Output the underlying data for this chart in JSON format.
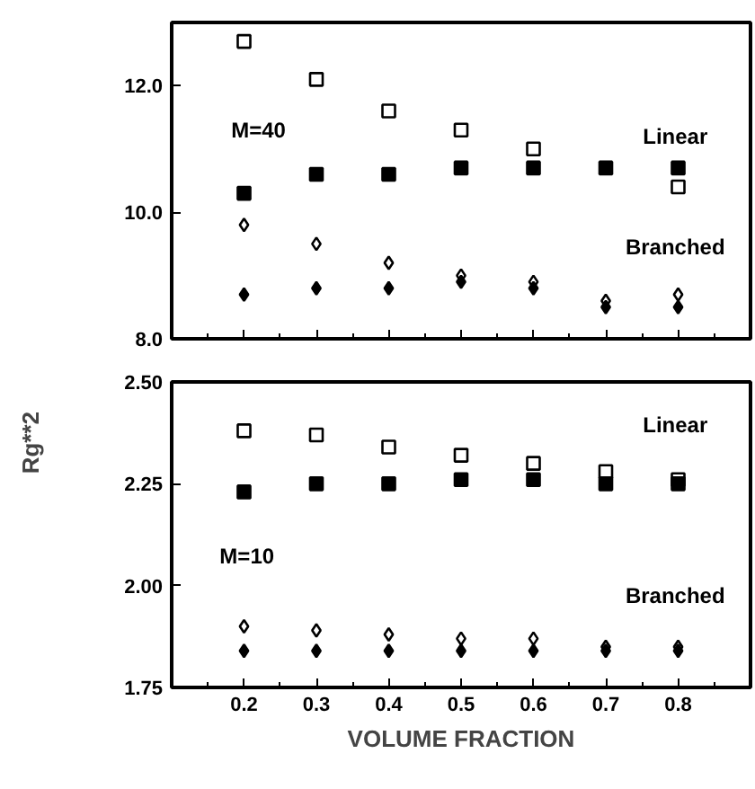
{
  "chart_data": [
    {
      "type": "scatter",
      "ylabel": "Rg**2",
      "x": [
        0.2,
        0.3,
        0.4,
        0.5,
        0.6,
        0.7,
        0.8
      ],
      "series": [
        {
          "color": "#000000",
          "marker": "square",
          "values": [
            12.7,
            12.1,
            11.6,
            11.3,
            11.0,
            null,
            10.4
          ]
        },
        {
          "color": "#000000",
          "marker": "square",
          "values": [
            10.3,
            10.6,
            10.6,
            10.7,
            10.7,
            10.7,
            10.7
          ]
        },
        {
          "color": "#000000",
          "marker": "diamond",
          "values": [
            9.8,
            9.5,
            9.2,
            9.0,
            8.9,
            8.6,
            8.7
          ]
        },
        {
          "color": "#000000",
          "marker": "diamond",
          "values": [
            8.7,
            8.8,
            8.8,
            8.9,
            8.8,
            8.5,
            8.5
          ]
        }
      ],
      "annotations": [
        "M=40",
        "Linear",
        "Branched"
      ],
      "xlim": [
        0.1,
        0.9
      ],
      "xticks": [
        0.2,
        0.3,
        0.4,
        0.5,
        0.6,
        0.7,
        0.8
      ],
      "ylim": [
        8,
        13
      ],
      "yticks": [
        {
          "value": 8,
          "label": "8.0"
        },
        {
          "value": 10,
          "label": "10.0"
        },
        {
          "value": 12,
          "label": "12.0"
        }
      ],
      "tick_labels": "y",
      "grid": false
    },
    {
      "type": "scatter",
      "xlabel": "VOLUME FRACTION",
      "x": [
        0.2,
        0.3,
        0.4,
        0.5,
        0.6,
        0.7,
        0.8
      ],
      "series": [
        {
          "color": "#000000",
          "marker": "square",
          "values": [
            2.38,
            2.37,
            2.34,
            2.32,
            2.3,
            2.28,
            2.26
          ]
        },
        {
          "color": "#000000",
          "marker": "square",
          "values": [
            2.23,
            2.25,
            2.25,
            2.26,
            2.26,
            2.25,
            2.25
          ]
        },
        {
          "color": "#000000",
          "marker": "diamond",
          "values": [
            1.9,
            1.89,
            1.88,
            1.87,
            1.87,
            1.85,
            1.85
          ]
        },
        {
          "color": "#000000",
          "marker": "diamond",
          "values": [
            1.84,
            1.84,
            1.84,
            1.84,
            1.84,
            1.84,
            1.84
          ]
        }
      ],
      "annotations": [
        "Linear",
        "M=10",
        "Branched"
      ],
      "xlim": [
        0.1,
        0.9
      ],
      "xticks": [
        0.2,
        0.3,
        0.4,
        0.5,
        0.6,
        0.7,
        0.8
      ],
      "ylim": [
        1.75,
        2.5
      ],
      "yticks": [
        1.75,
        {
          "value": 2.0,
          "label": "2.00"
        },
        2.25,
        {
          "value": 2.5,
          "label": "2.50"
        }
      ],
      "grid": false
    }
  ]
}
